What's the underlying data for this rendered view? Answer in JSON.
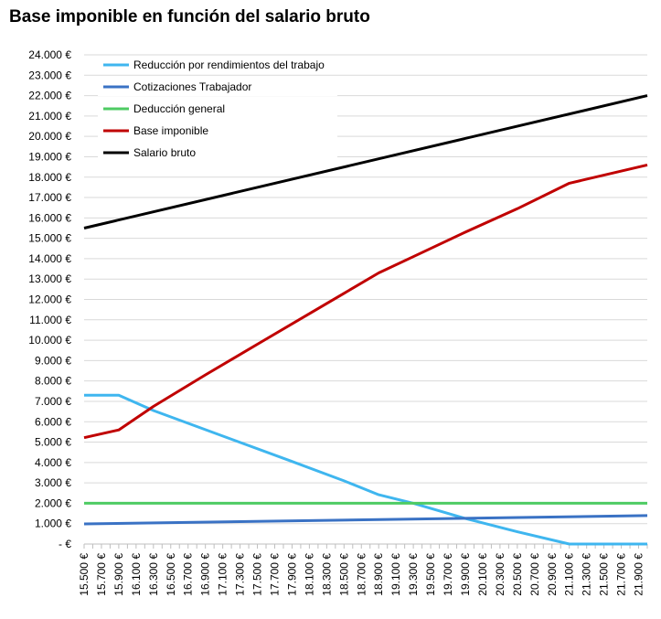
{
  "chart_data": {
    "type": "line",
    "title": "Base imponible en función del salario bruto",
    "xlabel": "",
    "ylabel": "",
    "ylim": [
      0,
      24000
    ],
    "y_ticks": [
      "-  €",
      "1.000 €",
      "2.000 €",
      "3.000 €",
      "4.000 €",
      "5.000 €",
      "6.000 €",
      "7.000 €",
      "8.000 €",
      "9.000 €",
      "10.000 €",
      "11.000 €",
      "12.000 €",
      "13.000 €",
      "14.000 €",
      "15.000 €",
      "16.000 €",
      "17.000 €",
      "18.000 €",
      "19.000 €",
      "20.000 €",
      "21.000 €",
      "22.000 €",
      "23.000 €",
      "24.000 €"
    ],
    "x_range": [
      15500,
      22000
    ],
    "x_ticks": [
      "15.500 €",
      "15.700 €",
      "15.900 €",
      "16.100 €",
      "16.300 €",
      "16.500 €",
      "16.700 €",
      "16.900 €",
      "17.100 €",
      "17.300 €",
      "17.500 €",
      "17.700 €",
      "17.900 €",
      "18.100 €",
      "18.300 €",
      "18.500 €",
      "18.700 €",
      "18.900 €",
      "19.100 €",
      "19.300 €",
      "19.500 €",
      "19.700 €",
      "19.900 €",
      "20.100 €",
      "20.300 €",
      "20.500 €",
      "20.700 €",
      "20.900 €",
      "21.100 €",
      "21.300 €",
      "21.500 €",
      "21.700 €",
      "21.900 €"
    ],
    "grid": true,
    "legend_position": "top-left",
    "series": [
      {
        "name": "Reducción por rendimientos del trabajo",
        "color": "#3fb6ef",
        "points": [
          [
            15500,
            7300
          ],
          [
            15900,
            7300
          ],
          [
            16300,
            6550
          ],
          [
            17100,
            5300
          ],
          [
            17900,
            4050
          ],
          [
            18500,
            3100
          ],
          [
            18900,
            2420
          ],
          [
            19300,
            2000
          ],
          [
            19900,
            1250
          ],
          [
            20500,
            600
          ],
          [
            21100,
            0
          ],
          [
            22000,
            0
          ]
        ]
      },
      {
        "name": "Cotizaciones Trabajador",
        "color": "#3a72c4",
        "points": [
          [
            15500,
            985
          ],
          [
            22000,
            1397
          ]
        ]
      },
      {
        "name": "Deducción general",
        "color": "#4ecb63",
        "points": [
          [
            15500,
            2000
          ],
          [
            22000,
            2000
          ]
        ]
      },
      {
        "name": "Base imponible",
        "color": "#c00000",
        "points": [
          [
            15500,
            5215
          ],
          [
            15900,
            5600
          ],
          [
            16300,
            6750
          ],
          [
            16900,
            8300
          ],
          [
            17500,
            9800
          ],
          [
            18100,
            11300
          ],
          [
            18500,
            12300
          ],
          [
            18900,
            13300
          ],
          [
            19300,
            14100
          ],
          [
            19900,
            15300
          ],
          [
            20500,
            16450
          ],
          [
            21100,
            17700
          ],
          [
            22000,
            18600
          ]
        ]
      },
      {
        "name": "Salario bruto",
        "color": "#000000",
        "points": [
          [
            15500,
            15500
          ],
          [
            22000,
            22000
          ]
        ]
      }
    ]
  }
}
